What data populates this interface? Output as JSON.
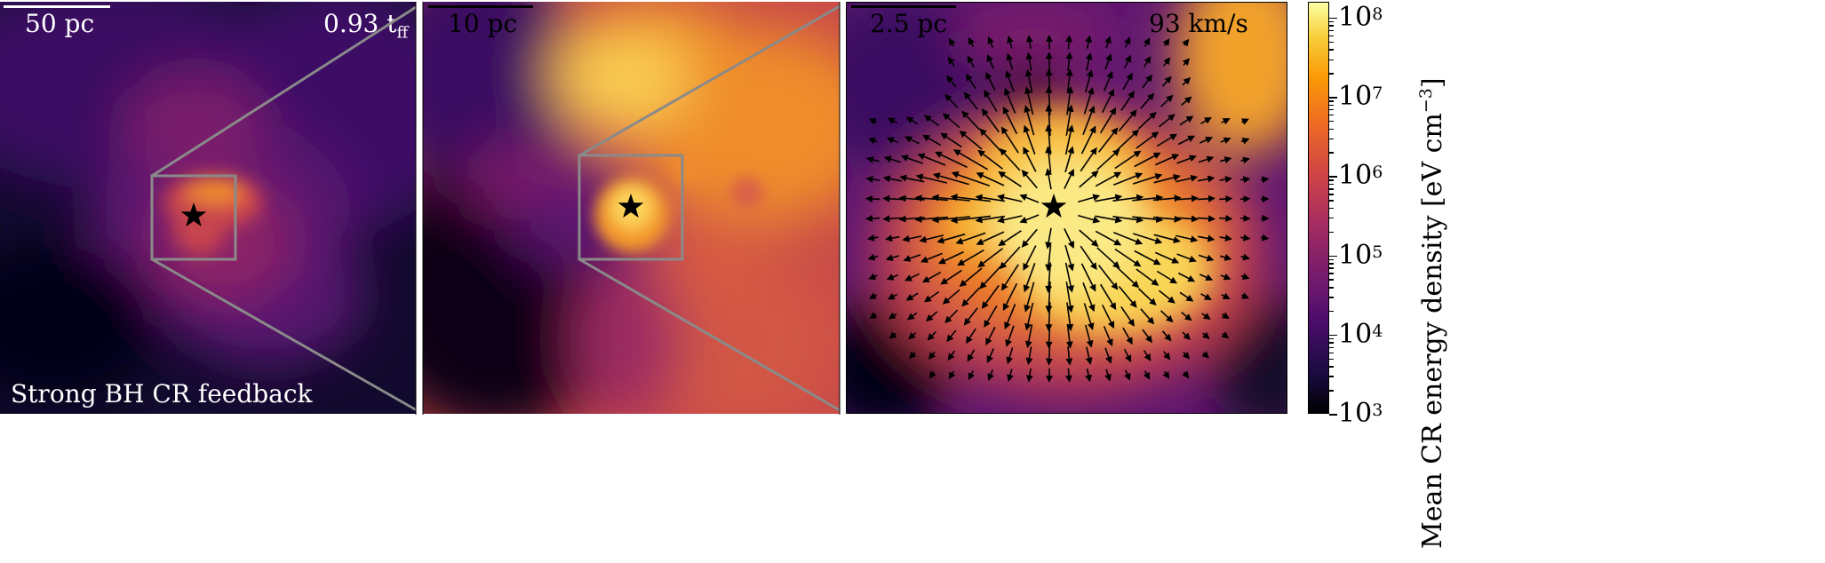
{
  "panels": [
    {
      "scale_label": "50 pc",
      "corner_label": "0.93 t",
      "corner_sub": "ff",
      "caption": "Strong BH CR feedback"
    },
    {
      "scale_label": "10 pc"
    },
    {
      "scale_label": "2.5 pc",
      "corner_label": "93 km/s"
    }
  ],
  "colorbar": {
    "title": "Mean CR energy density [eV cm",
    "title_exp": "−3",
    "title_close": "]",
    "ticks": [
      {
        "base": "10",
        "exp": "3"
      },
      {
        "base": "10",
        "exp": "4"
      },
      {
        "base": "10",
        "exp": "5"
      },
      {
        "base": "10",
        "exp": "6"
      },
      {
        "base": "10",
        "exp": "7"
      },
      {
        "base": "10",
        "exp": "8"
      }
    ]
  },
  "colors": {
    "zoom_box": "#8a8a8a",
    "cmap": "inferno"
  },
  "icons": [
    "star-marker-icon"
  ]
}
